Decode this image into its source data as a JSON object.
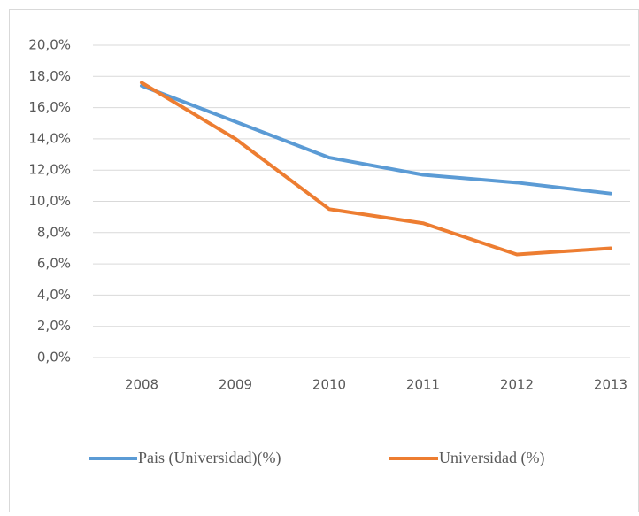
{
  "chart_data": {
    "type": "line",
    "categories": [
      "2008",
      "2009",
      "2010",
      "2011",
      "2012",
      "2013"
    ],
    "series": [
      {
        "name": "Pais (Universidad)(%)",
        "color": "#5b9bd5",
        "values": [
          17.4,
          15.1,
          12.8,
          11.7,
          11.2,
          10.5
        ]
      },
      {
        "name": "Universidad (%)",
        "color": "#ed7d31",
        "values": [
          17.6,
          14.0,
          9.5,
          8.6,
          6.6,
          7.0
        ]
      }
    ],
    "ylim": [
      0,
      20
    ],
    "yticks": [
      {
        "value": 0,
        "label": "0,0%"
      },
      {
        "value": 2,
        "label": "2,0%"
      },
      {
        "value": 4,
        "label": "4,0%"
      },
      {
        "value": 6,
        "label": "6,0%"
      },
      {
        "value": 8,
        "label": "8,0%"
      },
      {
        "value": 10,
        "label": "10,0%"
      },
      {
        "value": 12,
        "label": "12,0%"
      },
      {
        "value": 14,
        "label": "14,0%"
      },
      {
        "value": 16,
        "label": "16,0%"
      },
      {
        "value": 18,
        "label": "18,0%"
      },
      {
        "value": 20,
        "label": "20,0%"
      }
    ],
    "grid": true,
    "legend": "bottom"
  }
}
